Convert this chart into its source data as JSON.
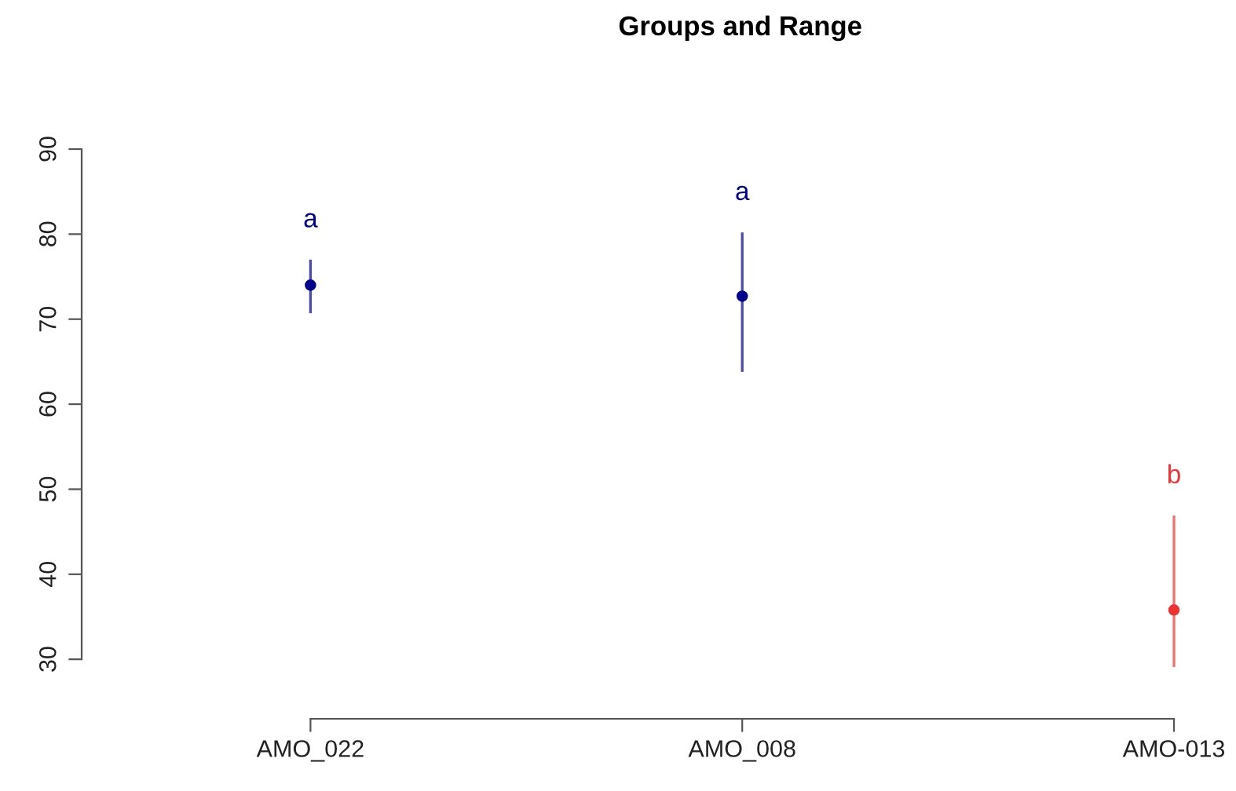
{
  "chart_data": {
    "type": "scatter",
    "title": "Groups and Range",
    "categories": [
      "AMO_022",
      "AMO_008",
      "AMO-013"
    ],
    "values": [
      74.0,
      72.7,
      35.8
    ],
    "errors": [
      [
        70.7,
        77.0
      ],
      [
        63.8,
        80.2
      ],
      [
        29.1,
        46.9
      ]
    ],
    "colors": [
      "#00008b",
      "#00008b",
      "#ee3333"
    ],
    "marker": "circle",
    "ylim": [
      23,
      90
    ],
    "yticks": [
      30,
      40,
      50,
      60,
      70,
      80,
      90
    ],
    "grid": false,
    "annotations": [
      "a",
      "a",
      "b"
    ]
  }
}
